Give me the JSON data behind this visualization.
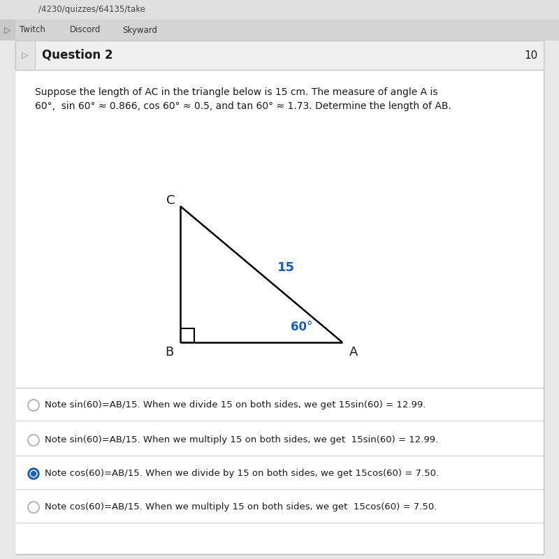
{
  "bg_color": "#e8e8e8",
  "page_bg": "#f4f4f4",
  "white": "#ffffff",
  "header_border_color": "#cccccc",
  "question_title": "Question 2",
  "question_points": "10",
  "question_text_line1": "Suppose the length of AC in the triangle below is 15 cm. The measure of angle A is",
  "question_text_line2": "60°,  sin 60° ≈ 0.866, cos 60° ≈ 0.5, and tan 60° ≈ 1.73. Determine the length of AB.",
  "label_B": "B",
  "label_A": "A",
  "label_C": "C",
  "hyp_label": "15",
  "hyp_label_color": "#1a5fb4",
  "angle_label": "60°",
  "angle_label_color": "#1a5fb4",
  "answer_options": [
    {
      "text": "Note sin(60)=AB/15. When we divide 15 on both sides, we get 15sin(60) = 12.99.",
      "selected": false
    },
    {
      "text": "Note sin(60)=AB/15. When we multiply 15 on both sides, we get  15sin(60) = 12.99.",
      "selected": false
    },
    {
      "text": "Note cos(60)=AB/15. When we divide by 15 on both sides, we get 15cos(60) = 7.50.",
      "selected": true
    },
    {
      "text": "Note cos(60)=AB/15. When we multiply 15 on both sides, we get  15cos(60) = 7.50.",
      "selected": false
    }
  ],
  "selected_fill_color": "#1a5fb4",
  "selected_dot_color": "#ffffff",
  "unselected_color": "#aaaaaa",
  "text_color": "#1a1a1a",
  "divider_color": "#cccccc",
  "navbar_url": "/4230/quizzes/64135/take",
  "tab_items": [
    "Twitch",
    "Discord",
    "Skyward"
  ],
  "navbar_bg": "#e0e0e0",
  "tabbar_bg": "#d4d4d4"
}
